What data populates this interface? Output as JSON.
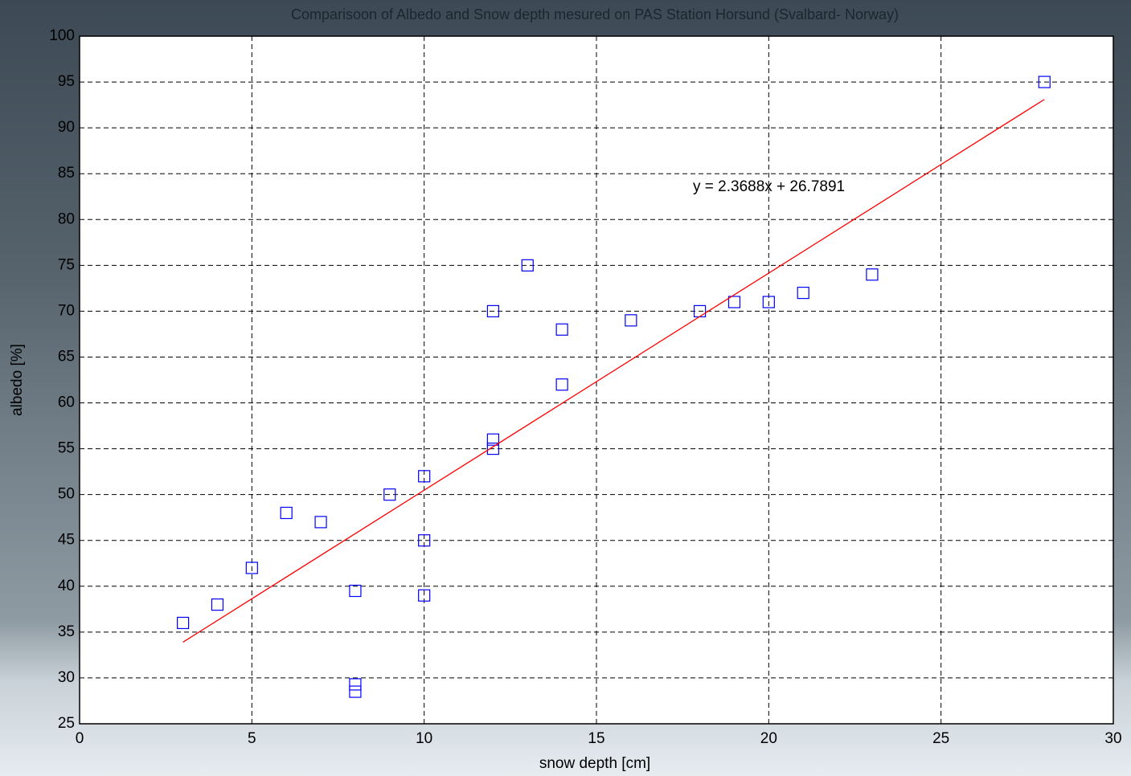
{
  "chart_data": {
    "type": "scatter",
    "title": "Comparisoon of Albedo and Snow depth mesured on PAS Station Horsund (Svalbard- Norway)",
    "xlabel": "snow depth [cm]",
    "ylabel": "albedo [%]",
    "annotation": "y = 2.3688x + 26.7891",
    "x": [
      3,
      4,
      5,
      6,
      7,
      8,
      8,
      8,
      9,
      10,
      10,
      10,
      12,
      12,
      12,
      13,
      14,
      14,
      16,
      18,
      19,
      20,
      21,
      23,
      28
    ],
    "values": [
      36,
      38,
      42,
      48,
      47,
      39.5,
      29.3,
      28.5,
      50,
      52,
      45,
      39,
      70,
      56,
      55,
      75,
      68,
      62,
      69,
      70,
      71,
      71,
      72,
      74,
      95
    ],
    "color": "#0000ff",
    "fit": {
      "x": [
        3,
        28
      ],
      "values": [
        33.9,
        93.1
      ],
      "color": "#ff0000"
    },
    "xlim": [
      0,
      30
    ],
    "ylim": [
      25,
      100
    ],
    "xticks": [
      0,
      5,
      10,
      15,
      20,
      25,
      30
    ],
    "yticks": [
      25,
      30,
      35,
      40,
      45,
      50,
      55,
      60,
      65,
      70,
      75,
      80,
      85,
      90,
      95,
      100
    ],
    "grid": true
  }
}
